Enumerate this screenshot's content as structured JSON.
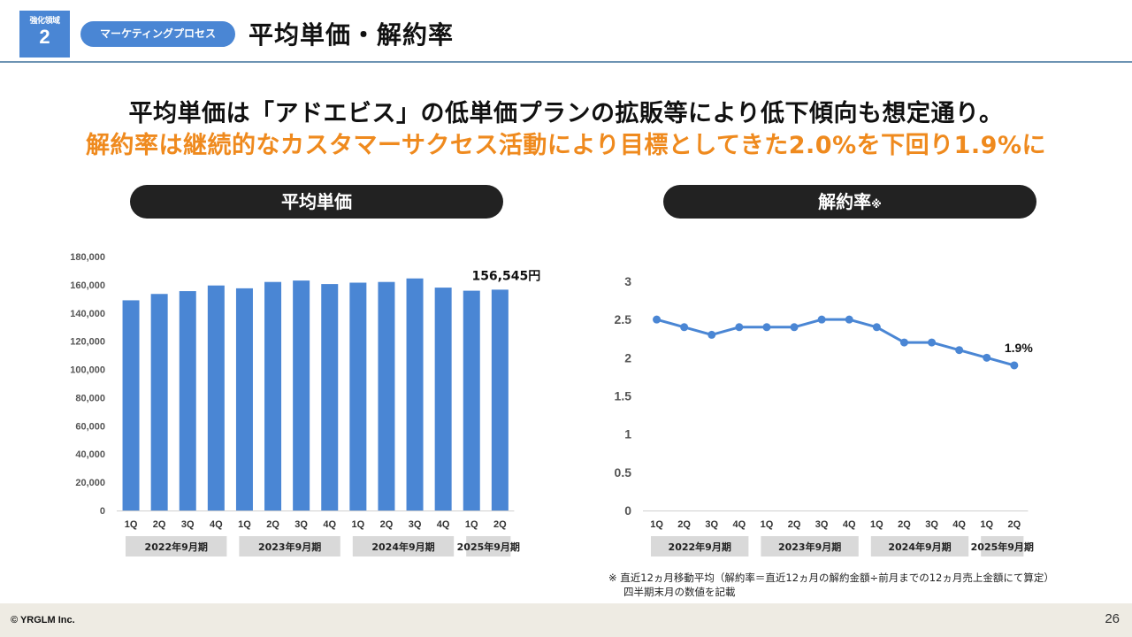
{
  "header": {
    "badge_label": "強化領域",
    "badge_number": "2",
    "category": "マーケティングプロセス",
    "title": "平均単価・解約率"
  },
  "headline": {
    "line1": "平均単価は「アドエビス」の低単価プランの拡販等により低下傾向も想定通り。",
    "line2": "解約率は継続的なカスタマーサクセス活動により目標としてきた2.0%を下回り1.9%に",
    "line2_color": "#ef8a1e"
  },
  "sections": {
    "left_title": "平均単価",
    "right_title": "解約率",
    "right_title_mark": "※"
  },
  "chart_data": [
    {
      "type": "bar",
      "categories": [
        "1Q",
        "2Q",
        "3Q",
        "4Q",
        "1Q",
        "2Q",
        "3Q",
        "4Q",
        "1Q",
        "2Q",
        "3Q",
        "4Q",
        "1Q",
        "2Q"
      ],
      "period_groups": [
        {
          "label": "2022年9月期",
          "count": 4
        },
        {
          "label": "2023年9月期",
          "count": 4
        },
        {
          "label": "2024年9月期",
          "count": 4
        },
        {
          "label": "2025年9月期",
          "count": 2
        }
      ],
      "series": [
        {
          "values": [
            149000,
            153500,
            155500,
            159500,
            157500,
            162000,
            163000,
            160500,
            161500,
            162000,
            164500,
            158000,
            155800,
            156545
          ]
        }
      ],
      "yticks": [
        "0",
        "20,000",
        "40,000",
        "60,000",
        "80,000",
        "100,000",
        "120,000",
        "140,000",
        "160,000",
        "180,000"
      ],
      "ylim": [
        0,
        180000
      ],
      "color": "#4a86d4",
      "annotation": "156,545円"
    },
    {
      "type": "line",
      "categories": [
        "1Q",
        "2Q",
        "3Q",
        "4Q",
        "1Q",
        "2Q",
        "3Q",
        "4Q",
        "1Q",
        "2Q",
        "3Q",
        "4Q",
        "1Q",
        "2Q"
      ],
      "period_groups": [
        {
          "label": "2022年9月期",
          "count": 4
        },
        {
          "label": "2023年9月期",
          "count": 4
        },
        {
          "label": "2024年9月期",
          "count": 4
        },
        {
          "label": "2025年9月期",
          "count": 2
        }
      ],
      "series": [
        {
          "values": [
            2.5,
            2.4,
            2.3,
            2.4,
            2.4,
            2.4,
            2.5,
            2.5,
            2.4,
            2.2,
            2.2,
            2.1,
            2.0,
            1.9
          ]
        }
      ],
      "yticks": [
        "0",
        "0.5",
        "1",
        "1.5",
        "2",
        "2.5",
        "3"
      ],
      "ylim": [
        0,
        3
      ],
      "color": "#4a86d4",
      "annotation": "1.9%"
    }
  ],
  "footnote": {
    "line1": "※ 直近12ヵ月移動平均（解約率＝直近12ヵ月の解約金額÷前月までの12ヵ月売上金額にて算定）",
    "line2": "四半期末月の数値を記載"
  },
  "footer": {
    "copyright": "© YRGLM Inc.",
    "page_number": "26"
  }
}
